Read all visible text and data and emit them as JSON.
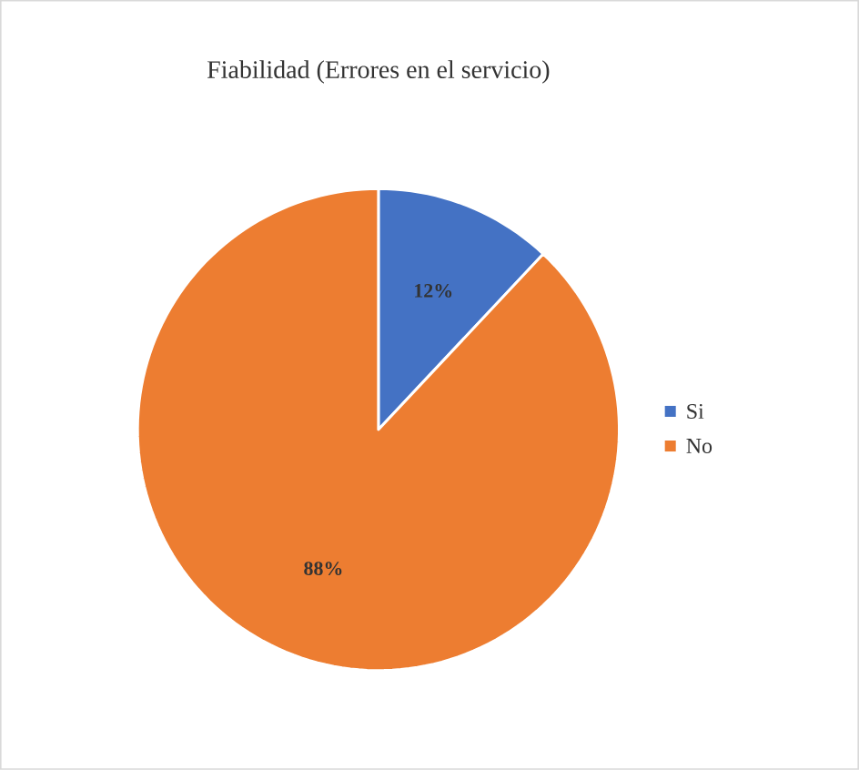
{
  "chart_data": {
    "type": "pie",
    "title": "Fiabilidad (Errores en el servicio)",
    "categories": [
      "Si",
      "No"
    ],
    "values": [
      12,
      88
    ],
    "colors": [
      "#4472c4",
      "#ed7d31"
    ],
    "value_labels": [
      "12%",
      "88%"
    ],
    "legend": "right"
  }
}
